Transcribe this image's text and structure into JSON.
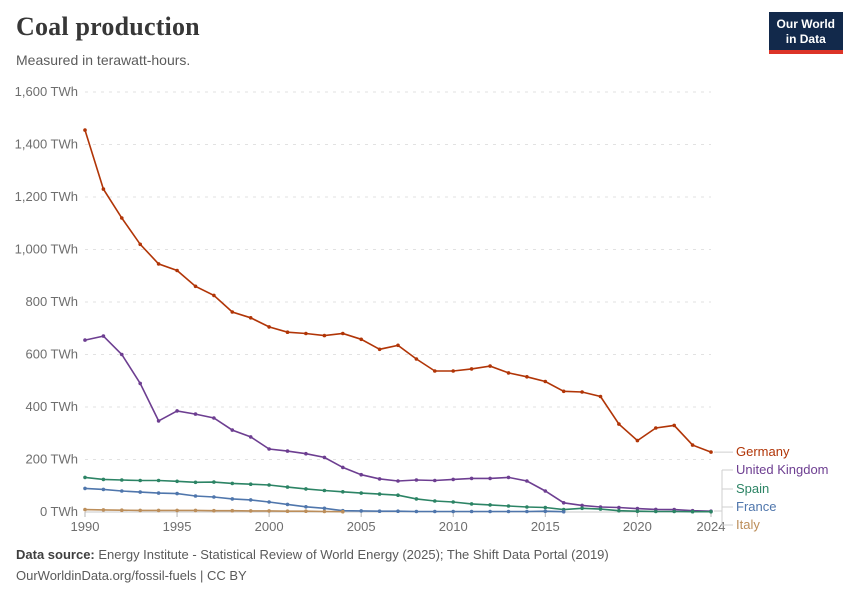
{
  "header": {
    "title": "Coal production",
    "subtitle": "Measured in terawatt-hours."
  },
  "logo": {
    "line1": "Our World",
    "line2": "in Data"
  },
  "chart_data": {
    "type": "line",
    "title": "Coal production",
    "unit": "TWh",
    "xlim": [
      1990,
      2024
    ],
    "ylim": [
      0,
      1600
    ],
    "grid": true,
    "legend_position": "right",
    "x": [
      1990,
      1991,
      1992,
      1993,
      1994,
      1995,
      1996,
      1997,
      1998,
      1999,
      2000,
      2001,
      2002,
      2003,
      2004,
      2005,
      2006,
      2007,
      2008,
      2009,
      2010,
      2011,
      2012,
      2013,
      2014,
      2015,
      2016,
      2017,
      2018,
      2019,
      2020,
      2021,
      2022,
      2023,
      2024
    ],
    "x_ticks": [
      1990,
      1995,
      2000,
      2005,
      2010,
      2015,
      2020,
      2024
    ],
    "y_ticks": [
      {
        "value": 0,
        "label": "0 TWh"
      },
      {
        "value": 200,
        "label": "200 TWh"
      },
      {
        "value": 400,
        "label": "400 TWh"
      },
      {
        "value": 600,
        "label": "600 TWh"
      },
      {
        "value": 800,
        "label": "800 TWh"
      },
      {
        "value": 1000,
        "label": "1,000 TWh"
      },
      {
        "value": 1200,
        "label": "1,200 TWh"
      },
      {
        "value": 1400,
        "label": "1,400 TWh"
      },
      {
        "value": 1600,
        "label": "1,600 TWh"
      }
    ],
    "series": [
      {
        "name": "Germany",
        "color": "#B13507",
        "values": [
          1455,
          1230,
          1120,
          1020,
          945,
          920,
          860,
          825,
          762,
          740,
          705,
          685,
          680,
          672,
          680,
          658,
          620,
          635,
          583,
          537,
          537,
          545,
          556,
          530,
          515,
          497,
          460,
          457,
          440,
          335,
          272,
          320,
          330,
          255,
          228
        ]
      },
      {
        "name": "United Kingdom",
        "color": "#6D3E91",
        "values": [
          655,
          670,
          600,
          490,
          347,
          385,
          373,
          358,
          312,
          286,
          240,
          232,
          222,
          208,
          170,
          142,
          126,
          118,
          122,
          120,
          124,
          128,
          128,
          132,
          118,
          80,
          35,
          25,
          19,
          17,
          13,
          10,
          9,
          5,
          3
        ]
      },
      {
        "name": "Spain",
        "color": "#2C8465",
        "values": [
          132,
          124,
          122,
          120,
          120,
          117,
          113,
          114,
          109,
          106,
          103,
          95,
          88,
          82,
          77,
          72,
          68,
          64,
          50,
          42,
          38,
          31,
          27,
          23,
          19,
          17,
          9,
          14,
          11,
          5,
          3,
          2,
          2,
          1,
          1
        ]
      },
      {
        "name": "France",
        "color": "#4F76AC",
        "values": [
          90,
          86,
          80,
          76,
          72,
          70,
          61,
          57,
          50,
          46,
          38,
          29,
          20,
          14,
          5,
          4,
          3,
          3,
          2,
          2,
          2,
          2,
          2,
          2,
          2,
          3,
          1,
          null,
          null,
          null,
          null,
          null,
          null,
          null,
          null
        ]
      },
      {
        "name": "Italy",
        "color": "#BC8E5A",
        "values": [
          9,
          8,
          7,
          6,
          6,
          6,
          6,
          5,
          5,
          4,
          4,
          3,
          3,
          2,
          1,
          null,
          null,
          null,
          null,
          null,
          null,
          null,
          null,
          null,
          null,
          null,
          null,
          null,
          null,
          null,
          null,
          null,
          null,
          null,
          null
        ]
      }
    ]
  },
  "footer": {
    "source_label": "Data source:",
    "source_text": "Energy Institute - Statistical Review of World Energy (2025); The Shift Data Portal (2019)",
    "url_line": "OurWorldinData.org/fossil-fuels | CC BY"
  }
}
